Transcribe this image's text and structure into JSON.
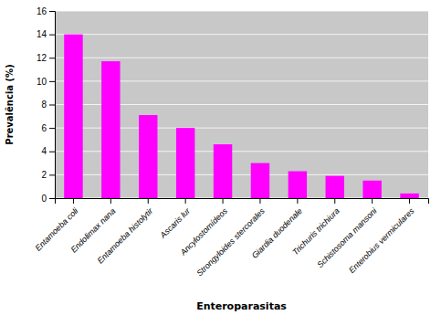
{
  "chart_data": {
    "type": "bar",
    "xlabel": "Enteroparasitas",
    "ylabel": "Prevalência (%)",
    "categories": [
      "Entamoeba coli",
      "Endolimax nana",
      "Entamoeba histolytir",
      "Ascaris lur",
      "Ancylostomídeos",
      "Strongyloides stercorales",
      "Giardia duodenale",
      "Trichuris trichiura",
      "Schistosoma mansoni",
      "Enterobius vermiculares"
    ],
    "values": [
      14.0,
      11.7,
      7.1,
      6.0,
      4.6,
      3.0,
      2.3,
      1.9,
      1.5,
      0.4
    ],
    "color": "#FF00FF",
    "ylim": [
      0,
      16
    ],
    "yticks": [
      0,
      2,
      4,
      6,
      8,
      10,
      12,
      14,
      16
    ],
    "grid": true
  }
}
